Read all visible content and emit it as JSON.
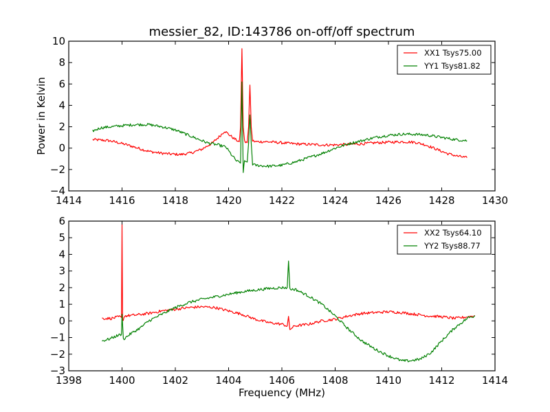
{
  "chart_data": [
    {
      "type": "line",
      "title": "messier_82, ID:143786 on-off/off spectrum",
      "xlabel": "",
      "ylabel": "Power in Kelvin",
      "xlim": [
        1414,
        1430
      ],
      "ylim": [
        -4,
        10
      ],
      "xticks": [
        1414,
        1416,
        1418,
        1420,
        1422,
        1424,
        1426,
        1428,
        1430
      ],
      "yticks": [
        -4,
        -2,
        0,
        2,
        4,
        6,
        8,
        10
      ],
      "grid": false,
      "legend_position": "top-right",
      "series": [
        {
          "name": "XX1 Tsys75.00",
          "color": "#ff0000",
          "x": [
            1414.9,
            1415.2,
            1415.5,
            1415.8,
            1416.2,
            1416.6,
            1417.0,
            1417.4,
            1417.8,
            1418.2,
            1418.6,
            1419.0,
            1419.4,
            1419.7,
            1419.85,
            1420.0,
            1420.2,
            1420.4,
            1420.45,
            1420.5,
            1420.55,
            1420.6,
            1420.7,
            1420.75,
            1420.8,
            1420.85,
            1420.9,
            1421.0,
            1421.4,
            1422.0,
            1422.5,
            1423.0,
            1423.5,
            1424.0,
            1424.5,
            1425.0,
            1425.5,
            1426.0,
            1426.5,
            1427.0,
            1427.4,
            1427.8,
            1428.2,
            1428.6,
            1428.95
          ],
          "y": [
            0.8,
            0.75,
            0.7,
            0.55,
            0.3,
            0.0,
            -0.3,
            -0.45,
            -0.55,
            -0.6,
            -0.45,
            -0.1,
            0.5,
            1.2,
            1.6,
            1.3,
            0.9,
            0.6,
            2.0,
            9.3,
            2.0,
            0.6,
            0.5,
            2.0,
            5.9,
            2.0,
            0.7,
            0.6,
            0.6,
            0.5,
            0.4,
            0.35,
            0.3,
            0.3,
            0.35,
            0.4,
            0.5,
            0.55,
            0.6,
            0.55,
            0.3,
            -0.1,
            -0.5,
            -0.75,
            -0.9
          ]
        },
        {
          "name": "YY1 Tsys81.82",
          "color": "#008000",
          "x": [
            1414.9,
            1415.2,
            1415.6,
            1416.0,
            1416.5,
            1417.0,
            1417.5,
            1418.0,
            1418.4,
            1418.8,
            1419.2,
            1419.6,
            1419.9,
            1420.1,
            1420.3,
            1420.45,
            1420.5,
            1420.55,
            1420.6,
            1420.7,
            1420.75,
            1420.8,
            1420.85,
            1420.9,
            1421.0,
            1421.5,
            1422.0,
            1422.5,
            1423.0,
            1423.5,
            1424.0,
            1424.5,
            1425.0,
            1425.5,
            1426.0,
            1426.5,
            1427.0,
            1427.5,
            1428.0,
            1428.5,
            1428.95
          ],
          "y": [
            1.6,
            1.9,
            2.0,
            2.1,
            2.2,
            2.2,
            2.0,
            1.7,
            1.3,
            0.9,
            0.5,
            0.3,
            0.1,
            -0.6,
            -1.2,
            -1.4,
            6.2,
            -2.2,
            -1.2,
            -1.3,
            0.5,
            3.1,
            0.5,
            -1.5,
            -1.6,
            -1.7,
            -1.6,
            -1.3,
            -0.9,
            -0.5,
            0.0,
            0.4,
            0.7,
            1.0,
            1.2,
            1.3,
            1.3,
            1.2,
            1.0,
            0.8,
            0.7
          ]
        }
      ]
    },
    {
      "type": "line",
      "title": "",
      "xlabel": "Frequency (MHz)",
      "ylabel": "",
      "xlim": [
        1398,
        1414
      ],
      "ylim": [
        -3,
        6
      ],
      "xticks": [
        1398,
        1400,
        1402,
        1404,
        1406,
        1408,
        1410,
        1412,
        1414
      ],
      "yticks": [
        -3,
        -2,
        -1,
        0,
        1,
        2,
        3,
        4,
        5,
        6
      ],
      "grid": false,
      "legend_position": "top-right",
      "series": [
        {
          "name": "XX2 Tsys64.10",
          "color": "#ff0000",
          "x": [
            1399.25,
            1399.6,
            1399.9,
            1399.98,
            1400.0,
            1400.02,
            1400.1,
            1400.5,
            1401.0,
            1401.5,
            1402.0,
            1402.5,
            1403.0,
            1403.5,
            1404.0,
            1404.5,
            1405.0,
            1405.5,
            1406.0,
            1406.2,
            1406.25,
            1406.3,
            1406.5,
            1407.0,
            1407.5,
            1408.0,
            1408.5,
            1409.0,
            1409.5,
            1410.0,
            1410.5,
            1411.0,
            1411.5,
            1412.0,
            1412.5,
            1413.0,
            1413.25
          ],
          "y": [
            0.15,
            0.15,
            0.25,
            0.2,
            5.8,
            0.0,
            0.3,
            0.35,
            0.45,
            0.6,
            0.7,
            0.8,
            0.85,
            0.8,
            0.6,
            0.4,
            0.1,
            -0.1,
            -0.2,
            -0.3,
            0.2,
            -0.5,
            -0.3,
            -0.2,
            0.0,
            0.1,
            0.3,
            0.45,
            0.5,
            0.55,
            0.5,
            0.4,
            0.3,
            0.25,
            0.15,
            0.25,
            0.3
          ]
        },
        {
          "name": "YY2 Tsys88.77",
          "color": "#008000",
          "x": [
            1399.25,
            1399.5,
            1399.8,
            1399.98,
            1400.0,
            1400.05,
            1400.3,
            1400.7,
            1401.0,
            1401.5,
            1402.0,
            1402.5,
            1403.0,
            1403.5,
            1404.0,
            1404.5,
            1405.0,
            1405.5,
            1406.0,
            1406.2,
            1406.25,
            1406.3,
            1406.5,
            1407.0,
            1407.5,
            1408.0,
            1408.5,
            1409.0,
            1409.5,
            1410.0,
            1410.5,
            1410.8,
            1411.2,
            1411.6,
            1412.0,
            1412.5,
            1413.0,
            1413.25
          ],
          "y": [
            -1.2,
            -1.1,
            -0.9,
            -0.8,
            0.4,
            -1.1,
            -0.8,
            -0.4,
            0.0,
            0.4,
            0.8,
            1.1,
            1.3,
            1.45,
            1.6,
            1.75,
            1.85,
            1.95,
            2.0,
            2.0,
            3.6,
            1.9,
            1.9,
            1.5,
            1.0,
            0.3,
            -0.5,
            -1.2,
            -1.7,
            -2.1,
            -2.4,
            -2.4,
            -2.3,
            -1.9,
            -1.2,
            -0.4,
            0.2,
            0.3
          ]
        }
      ]
    }
  ]
}
